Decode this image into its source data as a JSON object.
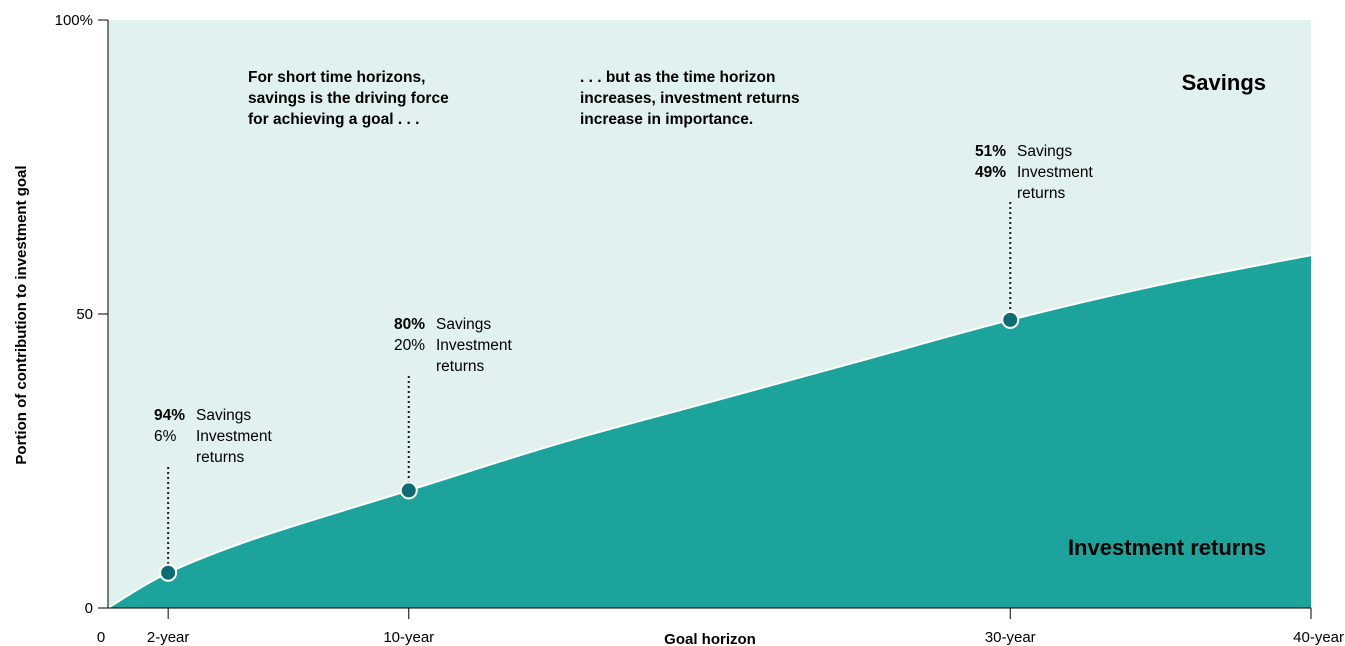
{
  "chart_data": {
    "type": "area",
    "xlabel": "Goal horizon",
    "ylabel": "Portion of contribution to investment goal",
    "xlim": [
      0,
      40
    ],
    "ylim": [
      0,
      100
    ],
    "x_ticks": [
      {
        "x": 0,
        "label": "0"
      },
      {
        "x": 2,
        "label": "2-year"
      },
      {
        "x": 10,
        "label": "10-year"
      },
      {
        "x": 30,
        "label": "30-year"
      },
      {
        "x": 40,
        "label": "40-year"
      }
    ],
    "y_ticks": [
      {
        "y": 0,
        "label": "0"
      },
      {
        "y": 50,
        "label": "50"
      },
      {
        "y": 100,
        "label": "100%"
      }
    ],
    "series": [
      {
        "name": "Investment returns",
        "color": "#1ba39c",
        "x": [
          0,
          2,
          5,
          10,
          15,
          20,
          25,
          30,
          35,
          40
        ],
        "values": [
          0,
          6,
          12,
          20,
          28,
          35,
          42,
          49,
          55,
          60
        ]
      },
      {
        "name": "Savings",
        "color": "#e1f1ef",
        "x": [
          0,
          2,
          5,
          10,
          15,
          20,
          25,
          30,
          35,
          40
        ],
        "values": [
          100,
          94,
          88,
          80,
          72,
          65,
          58,
          51,
          45,
          40
        ]
      }
    ],
    "markers": [
      {
        "x": 2,
        "y": 6,
        "savings_pct": "94%",
        "savings_bold": true,
        "savings_label": "Savings",
        "returns_pct": "6%",
        "returns_line1": "Investment",
        "returns_line2": "returns"
      },
      {
        "x": 10,
        "y": 20,
        "savings_pct": "80%",
        "savings_bold": true,
        "savings_label": "Savings",
        "returns_pct": "20%",
        "returns_line1": "Investment",
        "returns_line2": "returns"
      },
      {
        "x": 30,
        "y": 49,
        "savings_pct": "51%",
        "savings_bold": true,
        "savings_label": "Savings",
        "returns_pct": "49%",
        "returns_bold": true,
        "returns_line1": "Investment",
        "returns_line2": "returns"
      }
    ],
    "annotations": [
      {
        "lines": [
          "For short time horizons,",
          "savings is the driving force",
          "for achieving a goal . . ."
        ]
      },
      {
        "lines": [
          ". . . but as the time horizon",
          "increases, investment returns",
          "increase in importance."
        ]
      }
    ],
    "grid": false,
    "colors": {
      "returns": "#1ba39c",
      "savings": "#e1f1ef",
      "marker": "#0d6b73"
    }
  }
}
